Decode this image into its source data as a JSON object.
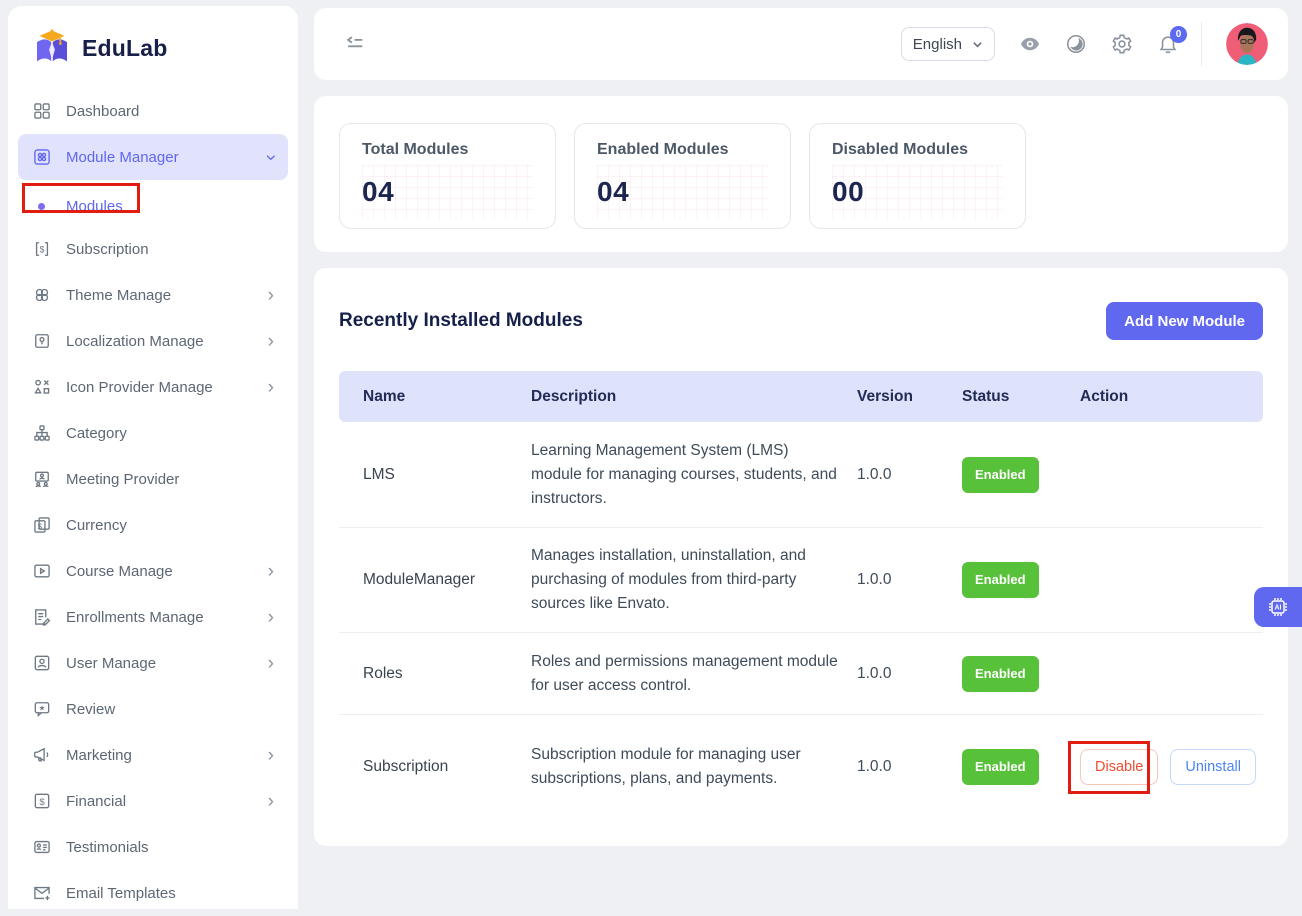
{
  "brand": {
    "name": "EduLab"
  },
  "sidebar": {
    "items": [
      {
        "label": "Dashboard",
        "icon": "dashboard-grid-icon",
        "chevron": null,
        "active": false,
        "submenu": false
      },
      {
        "label": "Module Manager",
        "icon": "module-manager-icon",
        "chevron": "down",
        "active": true,
        "submenu": false
      },
      {
        "label": "Modules",
        "icon": "bullet-dot",
        "chevron": null,
        "active": false,
        "submenu": true
      },
      {
        "label": "Subscription",
        "icon": "subscription-icon",
        "chevron": null,
        "active": false,
        "submenu": false
      },
      {
        "label": "Theme Manage",
        "icon": "theme-icon",
        "chevron": "right",
        "active": false,
        "submenu": false
      },
      {
        "label": "Localization Manage",
        "icon": "localization-icon",
        "chevron": "right",
        "active": false,
        "submenu": false
      },
      {
        "label": "Icon Provider Manage",
        "icon": "icon-provider-icon",
        "chevron": "right",
        "active": false,
        "submenu": false
      },
      {
        "label": "Category",
        "icon": "category-icon",
        "chevron": null,
        "active": false,
        "submenu": false
      },
      {
        "label": "Meeting Provider",
        "icon": "meeting-provider-icon",
        "chevron": null,
        "active": false,
        "submenu": false
      },
      {
        "label": "Currency",
        "icon": "currency-icon",
        "chevron": null,
        "active": false,
        "submenu": false
      },
      {
        "label": "Course Manage",
        "icon": "course-manage-icon",
        "chevron": "right",
        "active": false,
        "submenu": false
      },
      {
        "label": "Enrollments Manage",
        "icon": "enrollments-icon",
        "chevron": "right",
        "active": false,
        "submenu": false
      },
      {
        "label": "User Manage",
        "icon": "user-manage-icon",
        "chevron": "right",
        "active": false,
        "submenu": false
      },
      {
        "label": "Review",
        "icon": "review-icon",
        "chevron": null,
        "active": false,
        "submenu": false
      },
      {
        "label": "Marketing",
        "icon": "marketing-icon",
        "chevron": "right",
        "active": false,
        "submenu": false
      },
      {
        "label": "Financial",
        "icon": "financial-icon",
        "chevron": "right",
        "active": false,
        "submenu": false
      },
      {
        "label": "Testimonials",
        "icon": "testimonials-icon",
        "chevron": null,
        "active": false,
        "submenu": false
      },
      {
        "label": "Email Templates",
        "icon": "email-templates-icon",
        "chevron": null,
        "active": false,
        "submenu": false
      }
    ]
  },
  "topbar": {
    "language": "English",
    "notification_count": "0"
  },
  "stats": [
    {
      "label": "Total Modules",
      "value": "04"
    },
    {
      "label": "Enabled Modules",
      "value": "04"
    },
    {
      "label": "Disabled Modules",
      "value": "00"
    }
  ],
  "modules_section": {
    "title": "Recently Installed Modules",
    "add_button": "Add New Module",
    "table": {
      "headers": [
        "Name",
        "Description",
        "Version",
        "Status",
        "Action"
      ],
      "rows": [
        {
          "name": "LMS",
          "description": "Learning Management System (LMS) module for managing courses, students, and instructors.",
          "version": "1.0.0",
          "status": "Enabled",
          "actions": []
        },
        {
          "name": "ModuleManager",
          "description": "Manages installation, uninstallation, and purchasing of modules from third-party sources like Envato.",
          "version": "1.0.0",
          "status": "Enabled",
          "actions": []
        },
        {
          "name": "Roles",
          "description": "Roles and permissions management module for user access control.",
          "version": "1.0.0",
          "status": "Enabled",
          "actions": []
        },
        {
          "name": "Subscription",
          "description": "Subscription module for managing user subscriptions, plans, and payments.",
          "version": "1.0.0",
          "status": "Enabled",
          "actions": [
            {
              "label": "Disable",
              "style": "danger",
              "annotated": true
            },
            {
              "label": "Uninstall",
              "style": "info",
              "annotated": false
            }
          ]
        }
      ]
    }
  },
  "floating_button": {
    "label": "AI"
  },
  "colors": {
    "accent": "#6168f0",
    "accent_light_bg": "#e1e3fc",
    "table_header_bg": "#dfe2fb",
    "status_enabled_green": "#57c13a",
    "danger_red": "#ef4b30",
    "info_blue": "#4b85f5",
    "annotation_red": "#e11d12",
    "heading_navy": "#15204a",
    "page_bg": "#eff0f3"
  }
}
